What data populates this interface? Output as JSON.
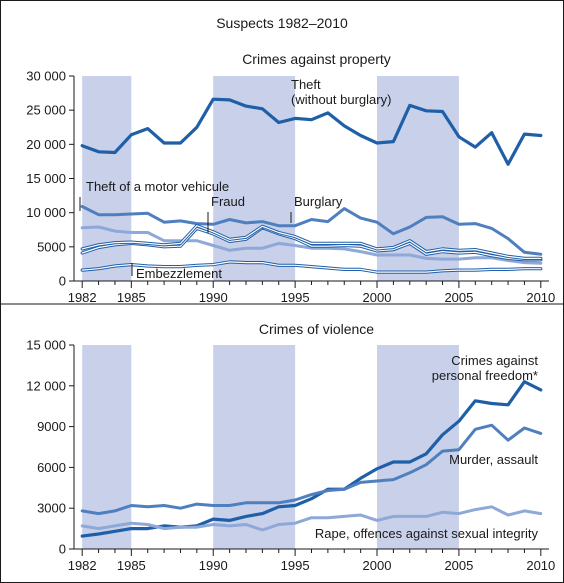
{
  "title": "Suspects 1982–2010",
  "colors": {
    "band": "#c8d0ea",
    "dark": "#1f5fa8",
    "mid": "#4f7fbf",
    "light": "#8ea8d8",
    "axis": "#1a1a1a"
  },
  "chart_data": [
    {
      "type": "line",
      "title": "Crimes against property",
      "x": [
        1982,
        1983,
        1984,
        1985,
        1986,
        1987,
        1988,
        1989,
        1990,
        1991,
        1992,
        1993,
        1994,
        1995,
        1996,
        1997,
        1998,
        1999,
        2000,
        2001,
        2002,
        2003,
        2004,
        2005,
        2006,
        2007,
        2008,
        2009,
        2010
      ],
      "xlim": [
        1981.5,
        2010.5
      ],
      "x_ticks": [
        1982,
        1985,
        1990,
        1995,
        2000,
        2005,
        2010
      ],
      "ylim": [
        0,
        30000
      ],
      "y_ticks": [
        0,
        5000,
        10000,
        15000,
        20000,
        25000,
        30000
      ],
      "y_tick_labels": [
        "0",
        "5000",
        "10 000",
        "15 000",
        "20 000",
        "25 000",
        "30 000"
      ],
      "shaded_periods": [
        [
          1982,
          1985
        ],
        [
          1990,
          1995
        ],
        [
          2000,
          2005
        ]
      ],
      "series": [
        {
          "name": "Theft (without burglary)",
          "color": "dark",
          "width": 3.2,
          "values": [
            19800,
            18900,
            18800,
            21400,
            22300,
            20200,
            20200,
            22500,
            26600,
            26500,
            25600,
            25200,
            23200,
            23800,
            23600,
            24600,
            22700,
            21300,
            20200,
            20400,
            25700,
            24900,
            24800,
            21100,
            19600,
            21700,
            17100,
            21500,
            21300
          ]
        },
        {
          "name": "Theft of a motor vehicule",
          "color": "mid",
          "width": 3,
          "values": [
            10900,
            9700,
            9700,
            9800,
            9900,
            8600,
            8800,
            8400,
            8300,
            9000,
            8500,
            8700,
            8100,
            8100,
            9000,
            8700,
            10600,
            9200,
            8600,
            6900,
            7900,
            9300,
            9400,
            8300,
            8400,
            7700,
            6200,
            4200,
            3900
          ]
        },
        {
          "name": "",
          "color": "light",
          "width": 3,
          "values": [
            7800,
            7900,
            7300,
            7100,
            7100,
            5900,
            5900,
            5900,
            5200,
            4500,
            4800,
            4800,
            5500,
            5200,
            4800,
            4800,
            4700,
            4300,
            3800,
            3800,
            3800,
            3300,
            3200,
            3200,
            3400,
            3400,
            3000,
            2700,
            2600
          ]
        },
        {
          "name": "Burglary",
          "color": "dark",
          "width": 1.8,
          "outline": true,
          "values": [
            4100,
            4900,
            5300,
            5500,
            5300,
            5000,
            5100,
            7700,
            6900,
            5800,
            6100,
            7800,
            6900,
            6200,
            5100,
            5100,
            5200,
            5100,
            4400,
            4600,
            5500,
            3900,
            4300,
            4100,
            4200,
            3700,
            3300,
            3100,
            3100
          ]
        },
        {
          "name": "Fraud",
          "color": "dark",
          "width": 1.8,
          "outline": true,
          "values": [
            4700,
            5300,
            5600,
            5700,
            5500,
            5300,
            5500,
            8100,
            7200,
            6100,
            6400,
            8000,
            7100,
            6500,
            5500,
            5500,
            5500,
            5500,
            4700,
            4900,
            5900,
            4300,
            4700,
            4500,
            4600,
            4100,
            3600,
            3300,
            3300
          ]
        },
        {
          "name": "Embezzlement",
          "color": "dark",
          "width": 1.8,
          "outline": true,
          "values": [
            1600,
            1800,
            2200,
            2400,
            2200,
            2100,
            2100,
            2300,
            2400,
            2800,
            2700,
            2700,
            2300,
            2300,
            2100,
            1900,
            1700,
            1700,
            1300,
            1300,
            1300,
            1300,
            1500,
            1600,
            1600,
            1700,
            1700,
            1800,
            1800
          ]
        }
      ],
      "annotations": [
        {
          "series": 0,
          "lines": [
            "Theft",
            "(without burglary)"
          ]
        },
        {
          "series": 1,
          "lines": [
            "Theft of a motor vehicule"
          ]
        },
        {
          "series": 4,
          "lines": [
            "Fraud"
          ]
        },
        {
          "series": 3,
          "lines": [
            "Burglary"
          ]
        },
        {
          "series": 5,
          "lines": [
            "Embezzlement"
          ]
        }
      ]
    },
    {
      "type": "line",
      "title": "Crimes of violence",
      "x": [
        1982,
        1983,
        1984,
        1985,
        1986,
        1987,
        1988,
        1989,
        1990,
        1991,
        1992,
        1993,
        1994,
        1995,
        1996,
        1997,
        1998,
        1999,
        2000,
        2001,
        2002,
        2003,
        2004,
        2005,
        2006,
        2007,
        2008,
        2009,
        2010
      ],
      "xlim": [
        1981.5,
        2010.5
      ],
      "x_ticks": [
        1982,
        1985,
        1990,
        1995,
        2000,
        2005,
        2010
      ],
      "ylim": [
        0,
        15000
      ],
      "y_ticks": [
        0,
        3000,
        6000,
        9000,
        12000,
        15000
      ],
      "y_tick_labels": [
        "0",
        "3000",
        "6000",
        "9000",
        "12 000",
        "15 000"
      ],
      "shaded_periods": [
        [
          1982,
          1985
        ],
        [
          1990,
          1995
        ],
        [
          2000,
          2005
        ]
      ],
      "series": [
        {
          "name": "Crimes against personal freedom*",
          "color": "dark",
          "width": 3.2,
          "values": [
            950,
            1100,
            1300,
            1500,
            1500,
            1700,
            1600,
            1700,
            2200,
            2100,
            2400,
            2600,
            3100,
            3200,
            3700,
            4400,
            4400,
            5200,
            5900,
            6400,
            6400,
            7000,
            8400,
            9400,
            10900,
            10700,
            10600,
            12300,
            11700
          ]
        },
        {
          "name": "Murder, assault",
          "color": "mid",
          "width": 3,
          "values": [
            2800,
            2600,
            2800,
            3200,
            3100,
            3200,
            3000,
            3300,
            3200,
            3200,
            3400,
            3400,
            3400,
            3600,
            4000,
            4300,
            4400,
            4900,
            5000,
            5100,
            5600,
            6200,
            7200,
            7300,
            8800,
            9100,
            8000,
            8900,
            8500
          ]
        },
        {
          "name": "Rape, offences against sexual integrity",
          "color": "light",
          "width": 3,
          "values": [
            1700,
            1500,
            1700,
            1900,
            1800,
            1500,
            1600,
            1600,
            1800,
            1700,
            1800,
            1400,
            1800,
            1900,
            2300,
            2300,
            2400,
            2500,
            2100,
            2400,
            2400,
            2400,
            2700,
            2600,
            2900,
            3100,
            2500,
            2800,
            2600
          ]
        }
      ],
      "annotations": [
        {
          "series": 0,
          "lines": [
            "Crimes against",
            "personal freedom*"
          ]
        },
        {
          "series": 1,
          "lines": [
            "Murder, assault"
          ]
        },
        {
          "series": 2,
          "lines": [
            "Rape, offences against sexual integrity"
          ]
        }
      ]
    }
  ]
}
